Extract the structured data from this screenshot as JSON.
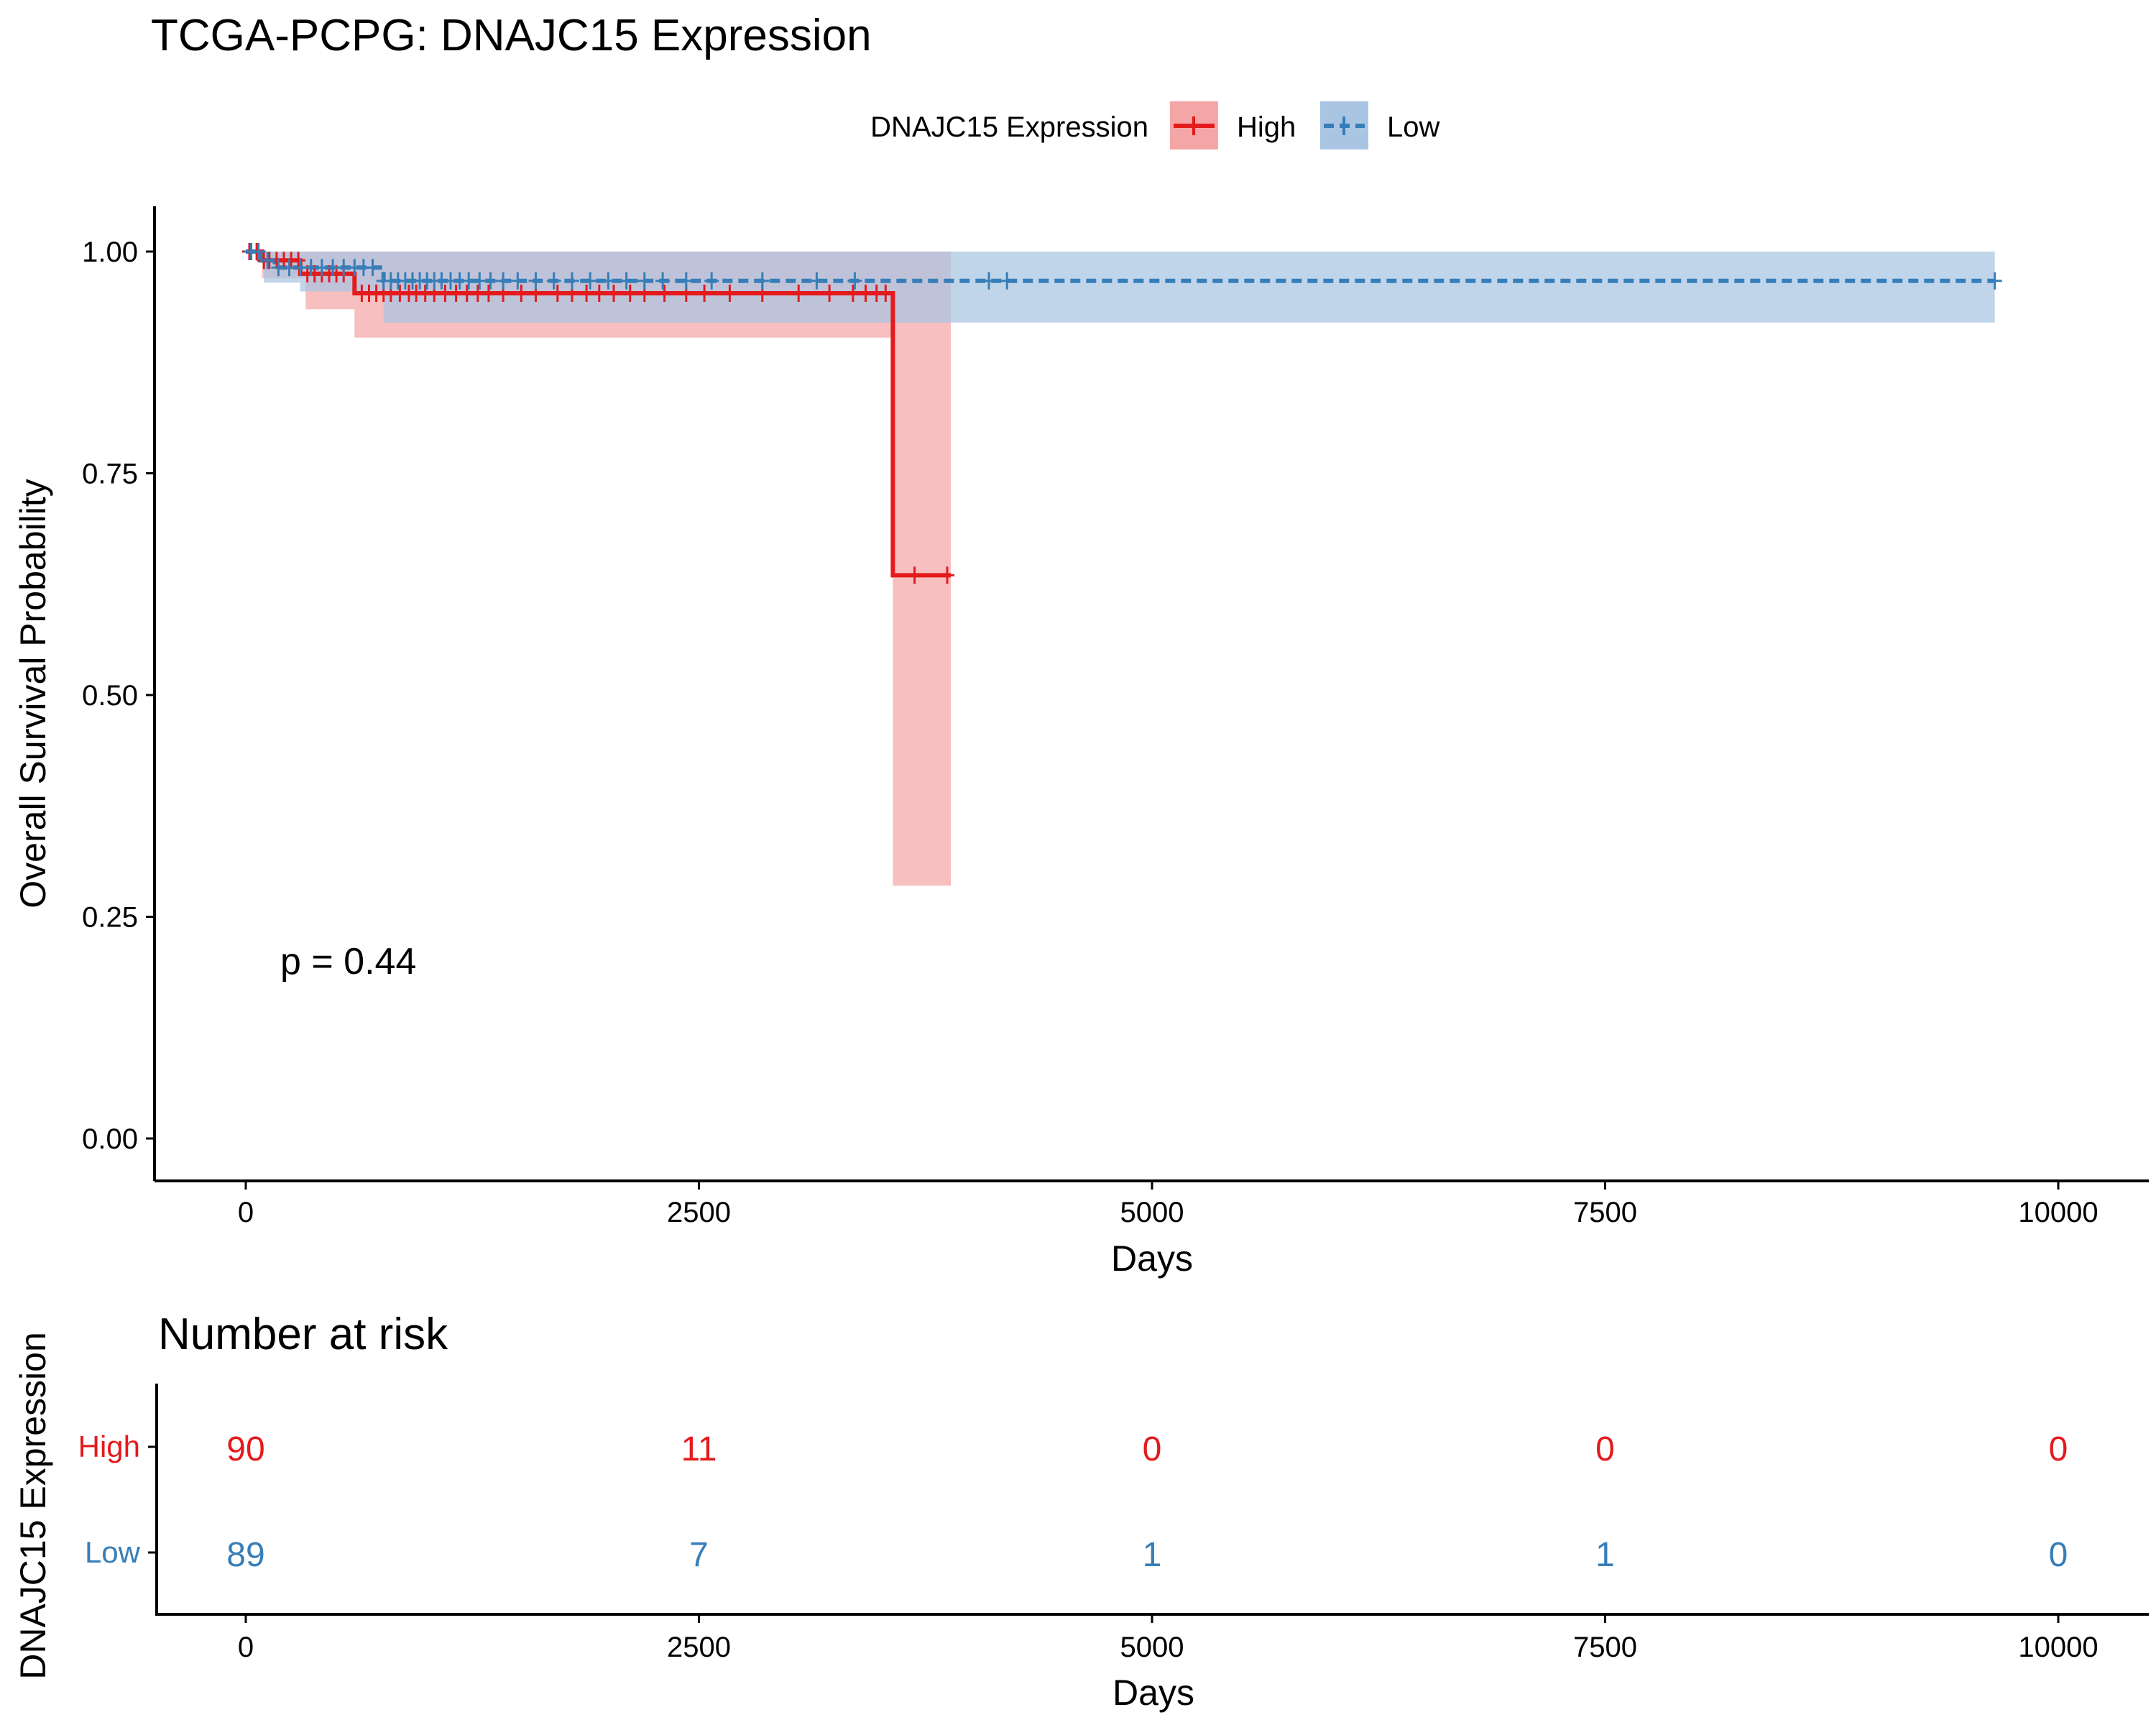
{
  "chart_data": [
    {
      "type": "line",
      "subtype": "kaplan-meier",
      "title": "TCGA-PCPG: DNAJC15 Expression",
      "xlabel": "Days",
      "ylabel": "Overall Survival Probability",
      "xlim": [
        -500,
        10500
      ],
      "ylim": [
        -0.05,
        1.05
      ],
      "x_ticks": [
        "0",
        "2500",
        "5000",
        "7500",
        "10000"
      ],
      "y_ticks": [
        "0.00",
        "0.25",
        "0.50",
        "0.75",
        "1.00"
      ],
      "legend_title": "DNAJC15 Expression",
      "legend_position": "top",
      "annotation": "p = 0.44",
      "series": [
        {
          "name": "High",
          "color": "#E41A1C",
          "fill": "#F4A6A7",
          "linestyle": "solid",
          "steps": [
            [
              0,
              1.0
            ],
            [
              90,
              0.99
            ],
            [
              300,
              0.975
            ],
            [
              600,
              0.953
            ],
            [
              3570,
              0.953
            ],
            [
              3570,
              0.635
            ],
            [
              3890,
              0.635
            ]
          ],
          "ci": [
            [
              0,
              1.0,
              1.0
            ],
            [
              90,
              0.97,
              1.0
            ],
            [
              330,
              0.935,
              1.0
            ],
            [
              600,
              0.903,
              1.0
            ],
            [
              3570,
              0.285,
              1.0
            ],
            [
              3890,
              0.285,
              1.0
            ]
          ],
          "censor_x": [
            20,
            60,
            100,
            130,
            170,
            210,
            250,
            290,
            340,
            380,
            420,
            460,
            500,
            540,
            640,
            680,
            720,
            760,
            800,
            850,
            900,
            940,
            990,
            1040,
            1100,
            1160,
            1220,
            1280,
            1340,
            1420,
            1520,
            1600,
            1720,
            1800,
            1880,
            1950,
            2030,
            2120,
            2200,
            2310,
            2430,
            2530,
            2670,
            2850,
            3050,
            3220,
            3350,
            3420,
            3480,
            3530,
            3690,
            3870
          ]
        },
        {
          "name": "Low",
          "color": "#377EB8",
          "fill": "#A9C5E2",
          "linestyle": "dashed",
          "steps": [
            [
              0,
              1.0
            ],
            [
              80,
              0.99
            ],
            [
              160,
              0.982
            ],
            [
              760,
              0.967
            ],
            [
              9650,
              0.967
            ]
          ],
          "ci": [
            [
              0,
              1.0,
              1.0
            ],
            [
              100,
              0.965,
              1.0
            ],
            [
              300,
              0.955,
              1.0
            ],
            [
              760,
              0.92,
              1.0
            ],
            [
              3890,
              0.92,
              1.0
            ],
            [
              9650,
              0.92,
              1.0
            ]
          ],
          "censor_x": [
            30,
            70,
            120,
            180,
            240,
            300,
            360,
            420,
            480,
            540,
            600,
            650,
            700,
            760,
            800,
            840,
            880,
            920,
            960,
            1000,
            1040,
            1080,
            1130,
            1180,
            1230,
            1290,
            1350,
            1420,
            1500,
            1600,
            1700,
            1800,
            1900,
            2000,
            2100,
            2200,
            2300,
            2430,
            2570,
            2850,
            3150,
            3360,
            4100,
            4200,
            9650
          ]
        }
      ]
    },
    {
      "type": "table",
      "title": "Number at risk",
      "xlabel": "Days",
      "ylabel": "DNAJC15 Expression",
      "x_ticks": [
        "0",
        "2500",
        "5000",
        "7500",
        "10000"
      ],
      "rows": [
        {
          "name": "High",
          "color": "#E41A1C",
          "values": [
            "90",
            "11",
            "0",
            "0",
            "0"
          ]
        },
        {
          "name": "Low",
          "color": "#377EB8",
          "values": [
            "89",
            "7",
            "1",
            "1",
            "0"
          ]
        }
      ]
    }
  ]
}
